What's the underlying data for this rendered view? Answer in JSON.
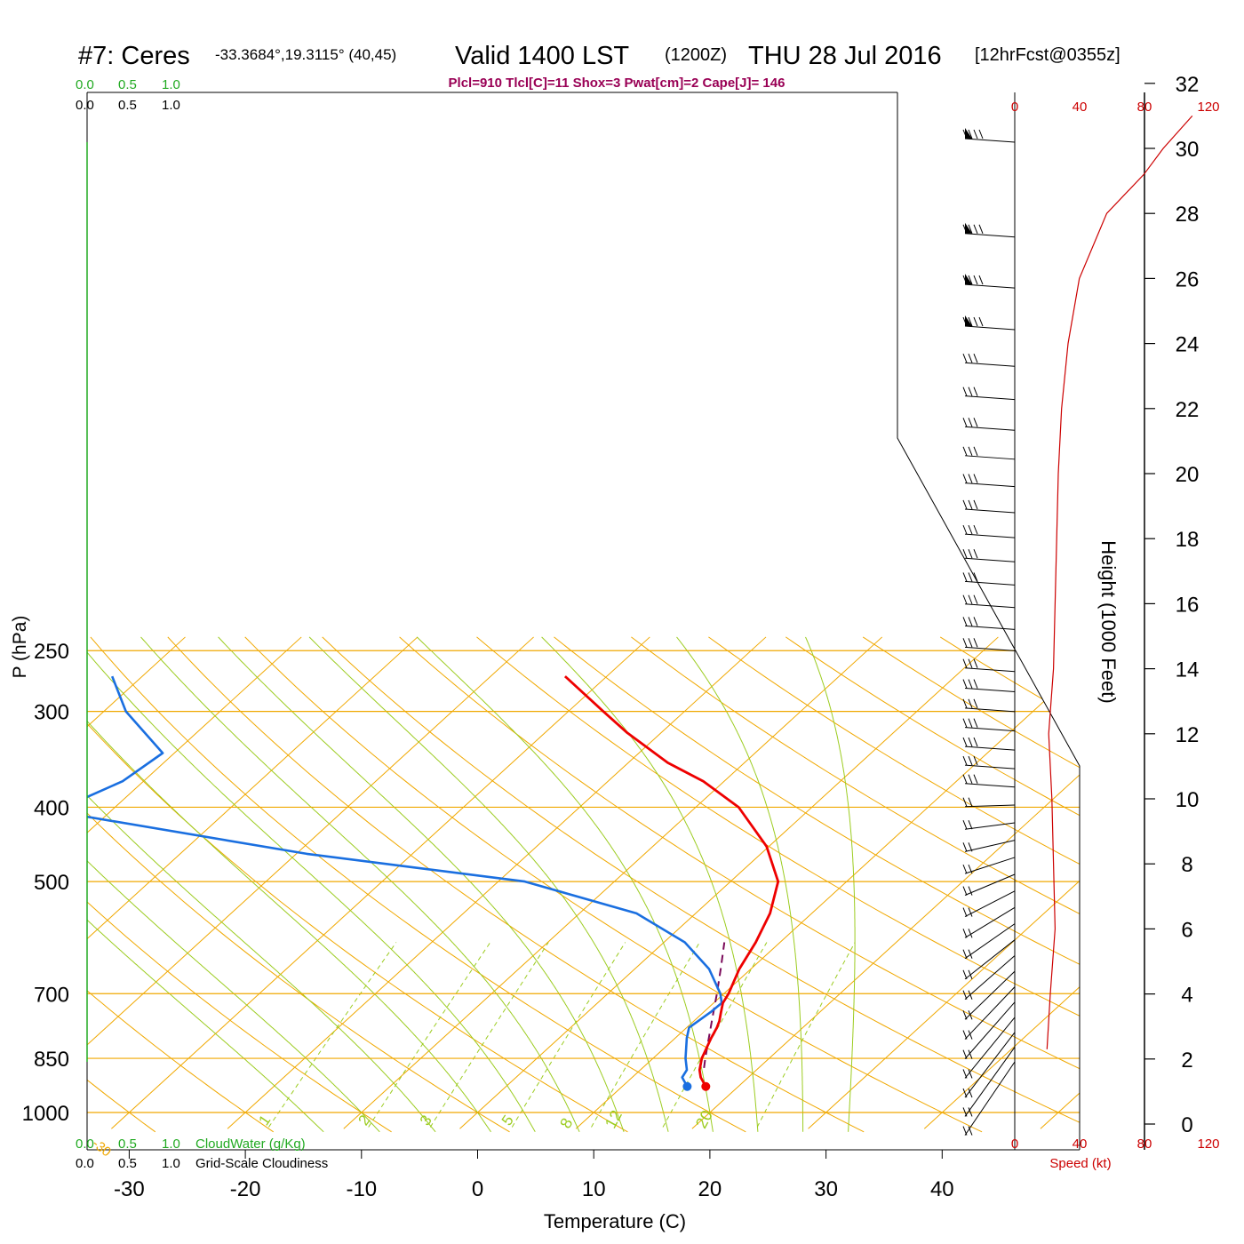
{
  "header": {
    "station": "#7: Ceres",
    "coords": "-33.3684°,19.3115° (40,45)",
    "valid": "Valid 1400 LST",
    "zulu": "(1200Z)",
    "date": "THU 28 Jul 2016",
    "fcst": "[12hrFcst@0355z]"
  },
  "indices": "Plcl=910 Tlcl[C]=11 Shox=3 Pwat[cm]=2 Cape[J]= 146",
  "cloud_top": {
    "green": [
      "0.0",
      "0.5",
      "1.0"
    ],
    "black": [
      "0.0",
      "0.5",
      "1.0"
    ]
  },
  "cloud_bottom": {
    "green": [
      "0.0",
      "0.5",
      "1.0"
    ],
    "green_label": "CloudWater (g/Kg)",
    "black": [
      "0.0",
      "0.5",
      "1.0"
    ],
    "black_label": "Grid-Scale Cloudiness"
  },
  "speed_axis": {
    "ticks": [
      "0",
      "40",
      "80",
      "120"
    ],
    "label": "Speed (kt)"
  },
  "colors": {
    "temperature": "#ee0000",
    "dewpoint": "#1a6fe0",
    "parcel": "#7a0a5a",
    "isotherm": "#f0a800",
    "dry_adiabat": "#f0a800",
    "moist_adiabat": "#9ccc20",
    "mixing_ratio": "#9ccc20",
    "cloud": "#22aa22",
    "speed": "#cc0000",
    "indices": "#990055"
  },
  "chart_data": {
    "type": "skew-t",
    "xlabel": "Temperature (C)",
    "ylabel": "P (hPa)",
    "y2label": "Height (1000 Feet)",
    "pressure_ticks": [
      250,
      300,
      400,
      500,
      700,
      850,
      1000
    ],
    "temperature_ticks": [
      -30,
      -20,
      -10,
      0,
      10,
      20,
      30,
      40
    ],
    "height_ticks": [
      0,
      2,
      4,
      6,
      8,
      10,
      12,
      14,
      16,
      18,
      20,
      22,
      24,
      26,
      28,
      30,
      32
    ],
    "isotherm_labels": [
      10,
      0,
      -10,
      -20,
      -30
    ],
    "dry_adiabat_labels": [
      0,
      10,
      20,
      30
    ],
    "moist_adiabat_labels": [
      8,
      12,
      20
    ],
    "mixing_ratio_labels": [
      "1",
      "2",
      "3",
      "5"
    ],
    "temperature": [
      [
        925,
        17.2
      ],
      [
        900,
        15.9
      ],
      [
        880,
        15.1
      ],
      [
        850,
        14.2
      ],
      [
        800,
        13.1
      ],
      [
        775,
        12.6
      ],
      [
        760,
        12.2
      ],
      [
        740,
        11.5
      ],
      [
        720,
        10.8
      ],
      [
        700,
        10.4
      ],
      [
        650,
        9.0
      ],
      [
        600,
        7.9
      ],
      [
        550,
        6.4
      ],
      [
        500,
        4.1
      ],
      [
        450,
        -0.2
      ],
      [
        400,
        -6.3
      ],
      [
        370,
        -11.8
      ],
      [
        350,
        -16.6
      ],
      [
        320,
        -22.9
      ],
      [
        300,
        -27.0
      ],
      [
        270,
        -33.6
      ]
    ],
    "dewpoint": [
      [
        925,
        15.6
      ],
      [
        900,
        14.3
      ],
      [
        880,
        14.0
      ],
      [
        850,
        12.8
      ],
      [
        800,
        11.0
      ],
      [
        775,
        10.2
      ],
      [
        740,
        10.6
      ],
      [
        720,
        10.7
      ],
      [
        700,
        9.7
      ],
      [
        650,
        6.4
      ],
      [
        600,
        1.8
      ],
      [
        550,
        -5.1
      ],
      [
        500,
        -17.7
      ],
      [
        480,
        -28.2
      ],
      [
        460,
        -39.1
      ],
      [
        405,
        -64.8
      ],
      [
        370,
        -61.8
      ],
      [
        340,
        -61.0
      ],
      [
        300,
        -68.1
      ],
      [
        270,
        -72.6
      ]
    ],
    "parcel": [
      [
        875,
        15.3
      ],
      [
        850,
        14.5
      ],
      [
        800,
        12.9
      ],
      [
        750,
        11.2
      ],
      [
        700,
        9.4
      ],
      [
        650,
        7.4
      ],
      [
        600,
        5.2
      ]
    ],
    "wind_profile": {
      "units": "kt",
      "speed_range": [
        0,
        120
      ],
      "heights_kft": [
        2.3,
        4,
        6,
        8,
        10,
        12,
        14,
        16,
        18,
        20,
        22,
        24,
        26,
        28,
        29.2,
        30,
        31
      ],
      "speeds": [
        20,
        22,
        25,
        24,
        23,
        21,
        24,
        25,
        26,
        27,
        29,
        33,
        40,
        57,
        80,
        92,
        110
      ]
    },
    "wind_barb_count": 40
  }
}
